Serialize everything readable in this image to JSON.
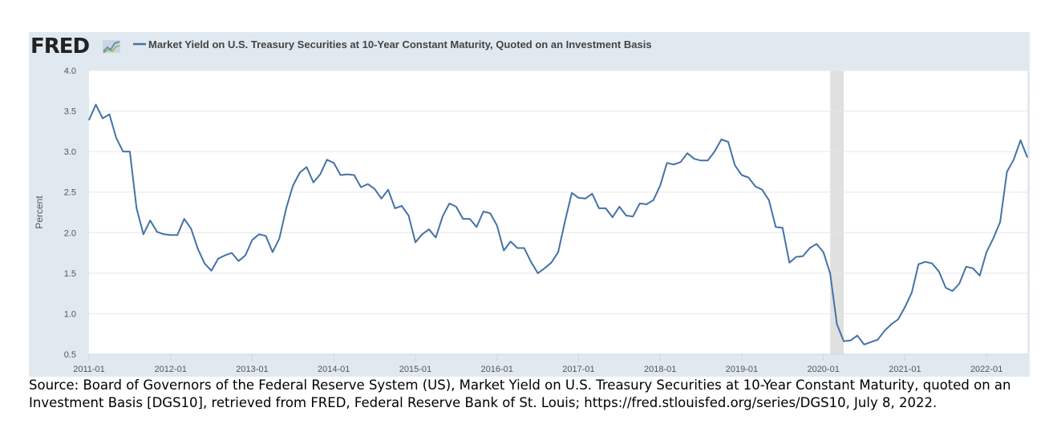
{
  "header": {
    "logo_text": "FRED",
    "legend_label": "Market Yield on U.S. Treasury Securities at 10-Year Constant Maturity, Quoted on an Investment Basis"
  },
  "footer": {
    "source_note": "Source: Board of Governors of the Federal Reserve System (US), Market Yield on U.S. Treasury Securities at 10-Year Constant Maturity, quoted on an Investment Basis [DGS10], retrieved from FRED, Federal Reserve Bank of St. Louis; https://fred.stlouisfed.org/series/DGS10, July 8, 2022."
  },
  "colors": {
    "header_bg": "#e1e9f0",
    "plot_bg": "#ffffff",
    "line": "#4572a7",
    "grid": "#e6e6e6",
    "recession": "#e0e0e0",
    "logo_accent": "#b3c5d6"
  },
  "chart_data": {
    "type": "line",
    "ylabel": "Percent",
    "xlabel": "",
    "ylim": [
      0.5,
      4.0
    ],
    "xlim": [
      "2011-01",
      "2022-07"
    ],
    "yticks": [
      "0.5",
      "1.0",
      "1.5",
      "2.0",
      "2.5",
      "3.0",
      "3.5",
      "4.0"
    ],
    "xticks": [
      "2011-01",
      "2012-01",
      "2013-01",
      "2014-01",
      "2015-01",
      "2016-01",
      "2017-01",
      "2018-01",
      "2019-01",
      "2020-01",
      "2021-01",
      "2022-01"
    ],
    "grid": true,
    "legend_position": "top",
    "recession_shading": [
      {
        "start": "2020-02",
        "end": "2020-04"
      }
    ],
    "series": [
      {
        "name": "Market Yield on U.S. Treasury Securities at 10-Year Constant Maturity, Quoted on an Investment Basis",
        "x": [
          "2011-01",
          "2011-02",
          "2011-03",
          "2011-04",
          "2011-05",
          "2011-06",
          "2011-07",
          "2011-08",
          "2011-09",
          "2011-10",
          "2011-11",
          "2011-12",
          "2012-01",
          "2012-02",
          "2012-03",
          "2012-04",
          "2012-05",
          "2012-06",
          "2012-07",
          "2012-08",
          "2012-09",
          "2012-10",
          "2012-11",
          "2012-12",
          "2013-01",
          "2013-02",
          "2013-03",
          "2013-04",
          "2013-05",
          "2013-06",
          "2013-07",
          "2013-08",
          "2013-09",
          "2013-10",
          "2013-11",
          "2013-12",
          "2014-01",
          "2014-02",
          "2014-03",
          "2014-04",
          "2014-05",
          "2014-06",
          "2014-07",
          "2014-08",
          "2014-09",
          "2014-10",
          "2014-11",
          "2014-12",
          "2015-01",
          "2015-02",
          "2015-03",
          "2015-04",
          "2015-05",
          "2015-06",
          "2015-07",
          "2015-08",
          "2015-09",
          "2015-10",
          "2015-11",
          "2015-12",
          "2016-01",
          "2016-02",
          "2016-03",
          "2016-04",
          "2016-05",
          "2016-06",
          "2016-07",
          "2016-08",
          "2016-09",
          "2016-10",
          "2016-11",
          "2016-12",
          "2017-01",
          "2017-02",
          "2017-03",
          "2017-04",
          "2017-05",
          "2017-06",
          "2017-07",
          "2017-08",
          "2017-09",
          "2017-10",
          "2017-11",
          "2017-12",
          "2018-01",
          "2018-02",
          "2018-03",
          "2018-04",
          "2018-05",
          "2018-06",
          "2018-07",
          "2018-08",
          "2018-09",
          "2018-10",
          "2018-11",
          "2018-12",
          "2019-01",
          "2019-02",
          "2019-03",
          "2019-04",
          "2019-05",
          "2019-06",
          "2019-07",
          "2019-08",
          "2019-09",
          "2019-10",
          "2019-11",
          "2019-12",
          "2020-01",
          "2020-02",
          "2020-03",
          "2020-04",
          "2020-05",
          "2020-06",
          "2020-07",
          "2020-08",
          "2020-09",
          "2020-10",
          "2020-11",
          "2020-12",
          "2021-01",
          "2021-02",
          "2021-03",
          "2021-04",
          "2021-05",
          "2021-06",
          "2021-07",
          "2021-08",
          "2021-09",
          "2021-10",
          "2021-11",
          "2021-12",
          "2022-01",
          "2022-02",
          "2022-03",
          "2022-04",
          "2022-05",
          "2022-06",
          "2022-07"
        ],
        "values": [
          3.39,
          3.58,
          3.41,
          3.46,
          3.17,
          3.0,
          3.0,
          2.3,
          1.98,
          2.15,
          2.01,
          1.98,
          1.97,
          1.97,
          2.17,
          2.05,
          1.8,
          1.62,
          1.53,
          1.68,
          1.72,
          1.75,
          1.65,
          1.72,
          1.91,
          1.98,
          1.96,
          1.76,
          1.93,
          2.3,
          2.58,
          2.74,
          2.81,
          2.62,
          2.72,
          2.9,
          2.86,
          2.71,
          2.72,
          2.71,
          2.56,
          2.6,
          2.54,
          2.42,
          2.53,
          2.3,
          2.33,
          2.21,
          1.88,
          1.98,
          2.04,
          1.94,
          2.2,
          2.36,
          2.32,
          2.17,
          2.17,
          2.07,
          2.26,
          2.24,
          2.09,
          1.78,
          1.89,
          1.81,
          1.81,
          1.64,
          1.5,
          1.56,
          1.63,
          1.76,
          2.14,
          2.49,
          2.43,
          2.42,
          2.48,
          2.3,
          2.3,
          2.19,
          2.32,
          2.21,
          2.2,
          2.36,
          2.35,
          2.4,
          2.58,
          2.86,
          2.84,
          2.87,
          2.98,
          2.91,
          2.89,
          2.89,
          3.0,
          3.15,
          3.12,
          2.83,
          2.71,
          2.68,
          2.57,
          2.53,
          2.4,
          2.07,
          2.06,
          1.63,
          1.7,
          1.71,
          1.81,
          1.86,
          1.76,
          1.5,
          0.87,
          0.66,
          0.67,
          0.73,
          0.62,
          0.65,
          0.68,
          0.79,
          0.87,
          0.93,
          1.08,
          1.26,
          1.61,
          1.64,
          1.62,
          1.52,
          1.32,
          1.28,
          1.37,
          1.58,
          1.56,
          1.47,
          1.76,
          1.93,
          2.13,
          2.75,
          2.9,
          3.14,
          2.93
        ]
      }
    ]
  }
}
